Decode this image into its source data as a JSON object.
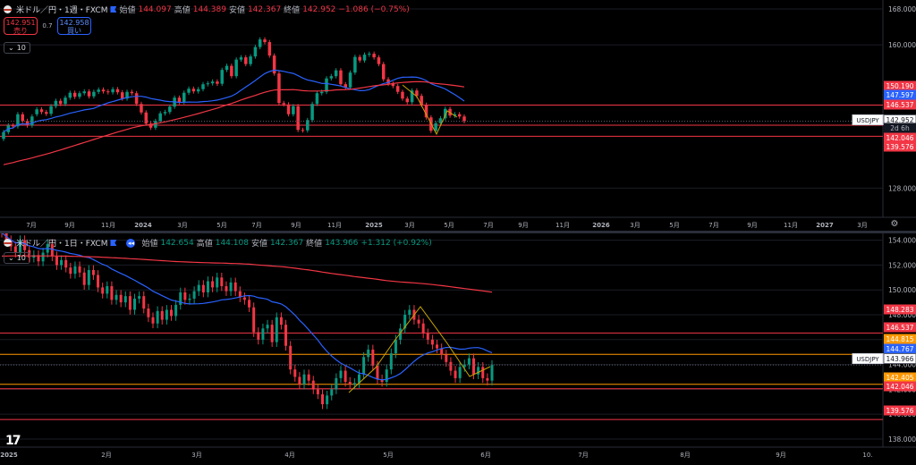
{
  "colors": {
    "up": "#089981",
    "down": "#f23645",
    "ma_fast": "#2962ff",
    "ma_slow": "#f23645",
    "zigzag": "#c7a400",
    "hline": "#f23645",
    "text": "#d1d4dc",
    "grid": "#1a1d25"
  },
  "top": {
    "legend": {
      "symbol": "米ドル／円・1週・FXCM",
      "open_label": "始値",
      "open": "144.097",
      "high_label": "高値",
      "high": "144.389",
      "low_label": "安値",
      "low": "142.367",
      "close_label": "終値",
      "close": "142.952",
      "change": "−1.086 (−0.75%)"
    },
    "trade": {
      "sell_price": "142.951",
      "sell_label": "売り",
      "spread": "0.7",
      "buy_price": "142.958",
      "buy_label": "買い"
    },
    "indicator_count": "10",
    "y_ticks": [
      "168.000",
      "160.000",
      "128.000"
    ],
    "x_ticks": [
      "7月",
      "9月",
      "11月",
      "2024",
      "3月",
      "5月",
      "7月",
      "9月",
      "11月",
      "2025",
      "3月",
      "5月",
      "7月",
      "9月",
      "11月",
      "2026",
      "3月",
      "5月",
      "7月",
      "9月",
      "11月",
      "2027",
      "3月"
    ],
    "price_tags": [
      {
        "text": "150.190",
        "kind": "red"
      },
      {
        "text": "147.597",
        "kind": "blue"
      },
      {
        "text": "146.537",
        "kind": "red"
      },
      {
        "text": "142.952",
        "kind": "current",
        "symbol": "USDJPY"
      },
      {
        "text": "2d 6h",
        "kind": "countdown"
      },
      {
        "text": "142.046",
        "kind": "red"
      },
      {
        "text": "139.576",
        "kind": "red"
      }
    ],
    "settings_icon": "gear-icon"
  },
  "bottom": {
    "legend": {
      "symbol": "米ドル／円・1日・FXCM",
      "open_label": "始値",
      "open": "142.654",
      "high_label": "高値",
      "high": "144.108",
      "low_label": "安値",
      "low": "142.367",
      "close_label": "終値",
      "close": "143.966",
      "change": "+1.312 (+0.92%)"
    },
    "indicator_count": "10",
    "y_ticks": [
      "154.000",
      "152.000",
      "150.000",
      "148.000",
      "146.000",
      "144.000",
      "142.000",
      "140.000",
      "138.000"
    ],
    "x_ticks": [
      "2025",
      "2月",
      "3月",
      "4月",
      "5月",
      "6月",
      "7月",
      "8月",
      "9月",
      "10."
    ],
    "price_tags": [
      {
        "text": "148.283",
        "kind": "red"
      },
      {
        "text": "146.537",
        "kind": "red"
      },
      {
        "text": "144.815",
        "kind": "orange"
      },
      {
        "text": "144.767",
        "kind": "blue"
      },
      {
        "text": "143.966",
        "kind": "current",
        "symbol": "USDJPY"
      },
      {
        "text": "142.405",
        "kind": "orange"
      },
      {
        "text": "142.046",
        "kind": "red"
      },
      {
        "text": "139.576",
        "kind": "red"
      }
    ],
    "logo": "TradingView"
  },
  "chart_data": [
    {
      "type": "candlestick",
      "title": "米ドル／円・1週・FXCM",
      "ylim": [
        121.5,
        170
      ],
      "x_range": [
        "2023-06",
        "2027-04"
      ],
      "horizontal_lines": [
        146.537,
        142.046,
        139.576
      ],
      "candles": [
        [
          139,
          140.5
        ],
        [
          140.5,
          142
        ],
        [
          142,
          141.8
        ],
        [
          141.8,
          144.5
        ],
        [
          144.5,
          143
        ],
        [
          143,
          142
        ],
        [
          142,
          144
        ],
        [
          144.5,
          145.6
        ],
        [
          145.6,
          145
        ],
        [
          145,
          144.6
        ],
        [
          144.6,
          146.3
        ],
        [
          146.3,
          147.5
        ],
        [
          147.5,
          146.8
        ],
        [
          146.8,
          148.2
        ],
        [
          148.2,
          149.3
        ],
        [
          149.3,
          148.4
        ],
        [
          148.4,
          149.2
        ],
        [
          149.2,
          149.6
        ],
        [
          149.6,
          148.5
        ],
        [
          148.5,
          149.5
        ],
        [
          149.5,
          150
        ],
        [
          150,
          149.6
        ],
        [
          149.6,
          149.4
        ],
        [
          149.4,
          150.1
        ],
        [
          150.1,
          149.4
        ],
        [
          149.4,
          148
        ],
        [
          148,
          149.5
        ],
        [
          149.5,
          149.2
        ],
        [
          149.2,
          146.8
        ],
        [
          146.8,
          144.9
        ],
        [
          144.9,
          142.4
        ],
        [
          142.4,
          141.5
        ],
        [
          141.5,
          143
        ],
        [
          143,
          144.7
        ],
        [
          144.7,
          145
        ],
        [
          145,
          146.2
        ],
        [
          146.2,
          148.2
        ],
        [
          148.2,
          147.2
        ],
        [
          147.2,
          149.3
        ],
        [
          149.3,
          150.2
        ],
        [
          150.2,
          149.6
        ],
        [
          149.6,
          150.1
        ],
        [
          150.1,
          151.2
        ],
        [
          151.2,
          151.4
        ],
        [
          151.4,
          151.8
        ],
        [
          151.8,
          151.3
        ],
        [
          151.3,
          154.4
        ],
        [
          154.4,
          155.3
        ],
        [
          155.3,
          153
        ],
        [
          153,
          156.7
        ],
        [
          156.7,
          157.2
        ],
        [
          157.2,
          155.7
        ],
        [
          155.7,
          157.4
        ],
        [
          157.4,
          159.5
        ],
        [
          159.5,
          161.2
        ],
        [
          161.2,
          160.6
        ],
        [
          160.6,
          157.6
        ],
        [
          157.6,
          153.6
        ],
        [
          153.6,
          147
        ],
        [
          147,
          146.7
        ],
        [
          146.7,
          144.5
        ],
        [
          144.5,
          146.3
        ],
        [
          146.3,
          141
        ],
        [
          141,
          140.9
        ],
        [
          140.9,
          143.2
        ],
        [
          143.2,
          146.8
        ],
        [
          146.8,
          149.2
        ],
        [
          149.2,
          149.5
        ],
        [
          149.5,
          152.5
        ],
        [
          152.5,
          153
        ],
        [
          153,
          154.3
        ],
        [
          154.3,
          151.2
        ],
        [
          151.2,
          150.5
        ],
        [
          150.5,
          153.8
        ],
        [
          153.8,
          157.3
        ],
        [
          157.3,
          156.5
        ],
        [
          156.5,
          157.8
        ],
        [
          157.8,
          158
        ],
        [
          158,
          157.2
        ],
        [
          157.2,
          155.7
        ],
        [
          155.7,
          152.3
        ],
        [
          152.3,
          151.3
        ],
        [
          151.3,
          150.8
        ],
        [
          150.8,
          149.5
        ],
        [
          149.5,
          148
        ],
        [
          148,
          147.2
        ],
        [
          147.2,
          149.8
        ],
        [
          149.8,
          148.6
        ],
        [
          148.6,
          146.6
        ],
        [
          146.6,
          143.8
        ],
        [
          143.8,
          140.8
        ],
        [
          140.8,
          142.5
        ],
        [
          142.5,
          143.6
        ],
        [
          143.6,
          145.7
        ],
        [
          145.7,
          144.2
        ],
        [
          144.2,
          144.5
        ],
        [
          144.5,
          144
        ],
        [
          144,
          142.95
        ]
      ]
    },
    {
      "type": "candlestick",
      "title": "米ドル／円・1日・FXCM",
      "ylim": [
        137.35,
        154.55
      ],
      "x_range": [
        "2025-01",
        "2025-10"
      ],
      "horizontal_lines": [
        146.537,
        144.815,
        142.405,
        142.046,
        139.576
      ],
      "candles": [
        [
          155,
          154.6
        ],
        [
          154.6,
          154
        ],
        [
          154,
          153.5
        ],
        [
          153.5,
          153
        ],
        [
          153,
          154
        ],
        [
          154,
          153.2
        ],
        [
          153.2,
          152.6
        ],
        [
          152.6,
          152.8
        ],
        [
          152.8,
          152.3
        ],
        [
          152.3,
          153
        ],
        [
          153,
          153.7
        ],
        [
          153.7,
          152.7
        ],
        [
          152.7,
          152
        ],
        [
          152,
          152.4
        ],
        [
          152.4,
          151.8
        ],
        [
          151.8,
          151.3
        ],
        [
          151.3,
          151.9
        ],
        [
          151.9,
          151.4
        ],
        [
          151.4,
          150.4
        ],
        [
          150.4,
          151.6
        ],
        [
          151.6,
          151.2
        ],
        [
          151.2,
          150.2
        ],
        [
          150.2,
          149.7
        ],
        [
          149.7,
          150.3
        ],
        [
          150.3,
          149.2
        ],
        [
          149.2,
          149.6
        ],
        [
          149.6,
          149
        ],
        [
          149,
          149.5
        ],
        [
          149.5,
          148.4
        ],
        [
          148.4,
          149.3
        ],
        [
          149.3,
          149.5
        ],
        [
          149.5,
          148.5
        ],
        [
          148.5,
          147.8
        ],
        [
          147.8,
          147.3
        ],
        [
          147.3,
          148.3
        ],
        [
          148.3,
          147.6
        ],
        [
          147.6,
          148.4
        ],
        [
          148.4,
          147.9
        ],
        [
          147.9,
          148.8
        ],
        [
          148.8,
          149.8
        ],
        [
          149.8,
          149.2
        ],
        [
          149.2,
          149.3
        ],
        [
          149.3,
          149.9
        ],
        [
          149.9,
          150.4
        ],
        [
          150.4,
          149.8
        ],
        [
          149.8,
          150.7
        ],
        [
          150.7,
          150.2
        ],
        [
          150.2,
          151
        ],
        [
          151,
          150.3
        ],
        [
          150.3,
          149.9
        ],
        [
          149.9,
          150.6
        ],
        [
          150.6,
          149.9
        ],
        [
          149.9,
          149.4
        ],
        [
          149.4,
          149.2
        ],
        [
          149.2,
          148.6
        ],
        [
          148.6,
          146.6
        ],
        [
          146.6,
          146
        ],
        [
          146,
          146.9
        ],
        [
          146.9,
          147.2
        ],
        [
          147.2,
          145.8
        ],
        [
          145.8,
          147.8
        ],
        [
          147.8,
          147.2
        ],
        [
          147.2,
          145.5
        ],
        [
          145.5,
          143.6
        ],
        [
          143.6,
          143
        ],
        [
          143,
          142.4
        ],
        [
          142.4,
          143.2
        ],
        [
          143.2,
          142.7
        ],
        [
          142.7,
          142
        ],
        [
          142,
          141.6
        ],
        [
          141.6,
          140.8
        ],
        [
          140.8,
          141.5
        ],
        [
          141.5,
          142
        ],
        [
          142,
          142.9
        ],
        [
          142.9,
          143.5
        ],
        [
          143.5,
          142.6
        ],
        [
          142.6,
          142.4
        ],
        [
          142.4,
          142.5
        ],
        [
          142.5,
          143.2
        ],
        [
          143.2,
          144.6
        ],
        [
          144.6,
          145.2
        ],
        [
          145.2,
          143.9
        ],
        [
          143.9,
          142.8
        ],
        [
          142.8,
          142.6
        ],
        [
          142.6,
          143.6
        ],
        [
          143.6,
          144.9
        ],
        [
          144.9,
          146
        ],
        [
          146,
          146.9
        ],
        [
          146.9,
          148
        ],
        [
          148,
          148.4
        ],
        [
          148.4,
          147.6
        ],
        [
          147.6,
          147.3
        ],
        [
          147.3,
          146.5
        ],
        [
          146.5,
          146
        ],
        [
          146,
          145.6
        ],
        [
          145.6,
          145.3
        ],
        [
          145.3,
          144.8
        ],
        [
          144.8,
          144.2
        ],
        [
          144.2,
          143.5
        ],
        [
          143.5,
          142.9
        ],
        [
          142.9,
          143.8
        ],
        [
          143.8,
          144
        ],
        [
          144,
          144.5
        ],
        [
          144.5,
          143.2
        ],
        [
          143.2,
          143.8
        ],
        [
          143.8,
          142.9
        ],
        [
          142.9,
          142.7
        ],
        [
          142.7,
          143.966
        ]
      ]
    }
  ]
}
